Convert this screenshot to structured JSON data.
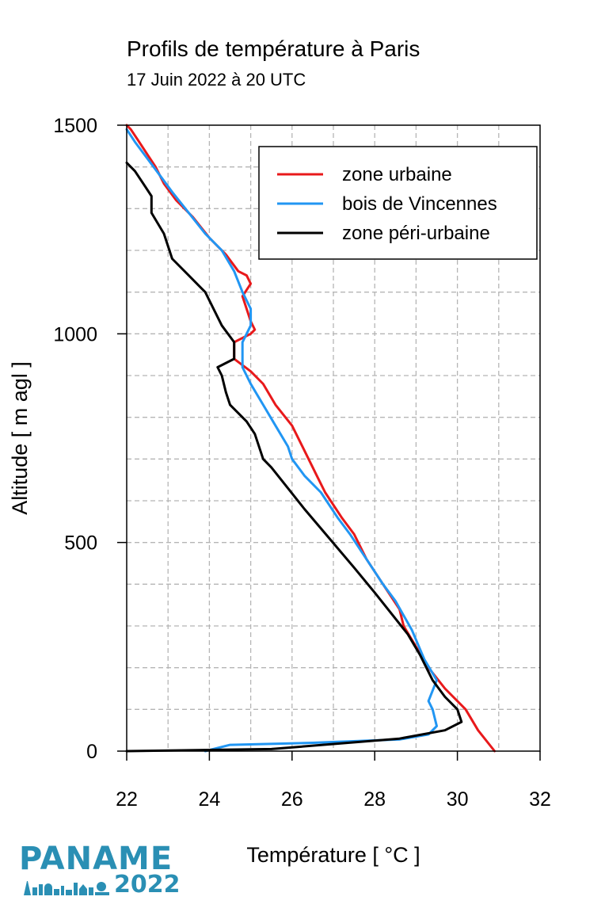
{
  "title": "Profils de température à Paris",
  "subtitle": "17 Juin 2022 à 20 UTC",
  "logo": {
    "name": "PANAME",
    "year": "2022",
    "color": "#2a8fb4"
  },
  "chart_data": {
    "type": "line",
    "xlabel": "Température [ °C ]",
    "ylabel": "Altitude [ m agl ]",
    "xlim": [
      22,
      32
    ],
    "ylim": [
      0,
      1500
    ],
    "xticks": [
      22,
      24,
      26,
      28,
      30,
      32
    ],
    "yticks": [
      0,
      500,
      1000,
      1500
    ],
    "xgrid": [
      23,
      24,
      25,
      26,
      27,
      28,
      29,
      30,
      31
    ],
    "ygrid": [
      100,
      200,
      300,
      400,
      500,
      600,
      700,
      800,
      900,
      1000,
      1100,
      1200,
      1300,
      1400
    ],
    "grid": true,
    "legend_position": "top-right",
    "series": [
      {
        "name": "zone urbaine",
        "color": "#e8191b",
        "points": [
          [
            30.9,
            0
          ],
          [
            30.5,
            50
          ],
          [
            30.2,
            100
          ],
          [
            29.7,
            150
          ],
          [
            29.3,
            200
          ],
          [
            29.0,
            250
          ],
          [
            28.7,
            300
          ],
          [
            28.6,
            340
          ],
          [
            28.2,
            400
          ],
          [
            27.8,
            460
          ],
          [
            27.5,
            520
          ],
          [
            27.2,
            560
          ],
          [
            26.8,
            620
          ],
          [
            26.6,
            660
          ],
          [
            26.3,
            720
          ],
          [
            26.0,
            780
          ],
          [
            25.6,
            830
          ],
          [
            25.3,
            880
          ],
          [
            25.0,
            910
          ],
          [
            24.6,
            940
          ],
          [
            24.6,
            980
          ],
          [
            25.0,
            1000
          ],
          [
            25.1,
            1010
          ],
          [
            25.0,
            1030
          ],
          [
            24.8,
            1090
          ],
          [
            25.0,
            1120
          ],
          [
            24.9,
            1140
          ],
          [
            24.7,
            1150
          ],
          [
            24.4,
            1190
          ],
          [
            24.0,
            1230
          ],
          [
            23.6,
            1280
          ],
          [
            23.2,
            1320
          ],
          [
            22.9,
            1360
          ],
          [
            22.7,
            1400
          ],
          [
            22.5,
            1430
          ],
          [
            22.3,
            1460
          ],
          [
            22.1,
            1490
          ],
          [
            22.0,
            1500
          ]
        ]
      },
      {
        "name": "bois de Vincennes",
        "color": "#2196f3",
        "points": [
          [
            23.9,
            0
          ],
          [
            24.5,
            15
          ],
          [
            26.5,
            20
          ],
          [
            28.6,
            28
          ],
          [
            29.3,
            40
          ],
          [
            29.5,
            60
          ],
          [
            29.4,
            100
          ],
          [
            29.3,
            120
          ],
          [
            29.5,
            170
          ],
          [
            29.2,
            220
          ],
          [
            28.9,
            290
          ],
          [
            28.5,
            360
          ],
          [
            28.2,
            400
          ],
          [
            27.8,
            460
          ],
          [
            27.4,
            520
          ],
          [
            27.1,
            560
          ],
          [
            26.7,
            620
          ],
          [
            26.3,
            660
          ],
          [
            26.0,
            700
          ],
          [
            25.9,
            730
          ],
          [
            25.6,
            780
          ],
          [
            25.3,
            830
          ],
          [
            25.0,
            880
          ],
          [
            24.8,
            920
          ],
          [
            24.8,
            980
          ],
          [
            25.0,
            1020
          ],
          [
            25.0,
            1060
          ],
          [
            24.8,
            1100
          ],
          [
            24.6,
            1150
          ],
          [
            24.3,
            1200
          ],
          [
            23.9,
            1240
          ],
          [
            23.5,
            1290
          ],
          [
            23.1,
            1340
          ],
          [
            22.8,
            1380
          ],
          [
            22.5,
            1420
          ],
          [
            22.2,
            1460
          ],
          [
            22.0,
            1490
          ]
        ]
      },
      {
        "name": "zone péri-urbaine",
        "color": "#000000",
        "points": [
          [
            22.0,
            0
          ],
          [
            25.5,
            5
          ],
          [
            28.6,
            30
          ],
          [
            29.7,
            50
          ],
          [
            30.1,
            70
          ],
          [
            30.0,
            100
          ],
          [
            29.7,
            130
          ],
          [
            29.4,
            170
          ],
          [
            29.1,
            230
          ],
          [
            28.8,
            280
          ],
          [
            28.4,
            330
          ],
          [
            28.0,
            380
          ],
          [
            27.5,
            440
          ],
          [
            26.9,
            510
          ],
          [
            26.3,
            580
          ],
          [
            25.9,
            630
          ],
          [
            25.5,
            680
          ],
          [
            25.3,
            700
          ],
          [
            25.1,
            760
          ],
          [
            24.9,
            790
          ],
          [
            24.5,
            830
          ],
          [
            24.4,
            860
          ],
          [
            24.3,
            900
          ],
          [
            24.2,
            920
          ],
          [
            24.6,
            940
          ],
          [
            24.6,
            980
          ],
          [
            24.3,
            1020
          ],
          [
            24.1,
            1060
          ],
          [
            23.9,
            1100
          ],
          [
            23.5,
            1140
          ],
          [
            23.1,
            1180
          ],
          [
            22.9,
            1240
          ],
          [
            22.6,
            1290
          ],
          [
            22.6,
            1330
          ],
          [
            22.4,
            1360
          ],
          [
            22.2,
            1390
          ],
          [
            22.0,
            1410
          ]
        ]
      }
    ]
  }
}
